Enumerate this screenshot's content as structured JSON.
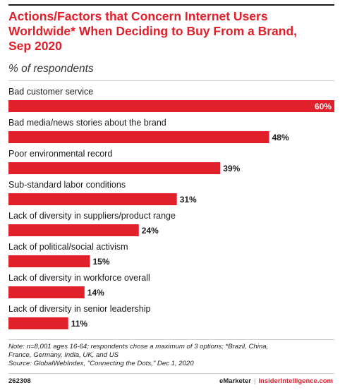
{
  "title_lines": [
    "Actions/Factors that Concern Internet Users",
    "Worldwide* When Deciding to Buy From a Brand,",
    "Sep 2020"
  ],
  "subtitle": "% of respondents",
  "chart_data": {
    "type": "bar",
    "orientation": "horizontal",
    "categories": [
      "Bad customer service",
      "Bad media/news stories about the brand",
      "Poor environmental record",
      "Sub-standard labor conditions",
      "Lack of diversity in suppliers/product range",
      "Lack of political/social activism",
      "Lack of diversity in workforce overall",
      "Lack of diversity in senior leadership"
    ],
    "values": [
      60,
      48,
      39,
      31,
      24,
      15,
      14,
      11
    ],
    "value_labels": [
      "60%",
      "48%",
      "39%",
      "31%",
      "24%",
      "15%",
      "14%",
      "11%"
    ],
    "xlim": [
      0,
      60
    ],
    "grid": false,
    "bar_color": "#e0202b"
  },
  "note_lines": [
    "Note: n=8,001 ages 16-64; respondents chose a maximum of 3 options; *Brazil, China,",
    "France, Germany, India, UK, and US",
    "Source: GlobalWebIndex, \"Connecting the Dots,\" Dec 1, 2020"
  ],
  "footer": {
    "chart_id": "262308",
    "brand": "eMarketer",
    "separator": "|",
    "site": "InsiderIntelligence.com"
  },
  "colors": {
    "accent": "#e0202b",
    "text": "#1a1a1a"
  }
}
